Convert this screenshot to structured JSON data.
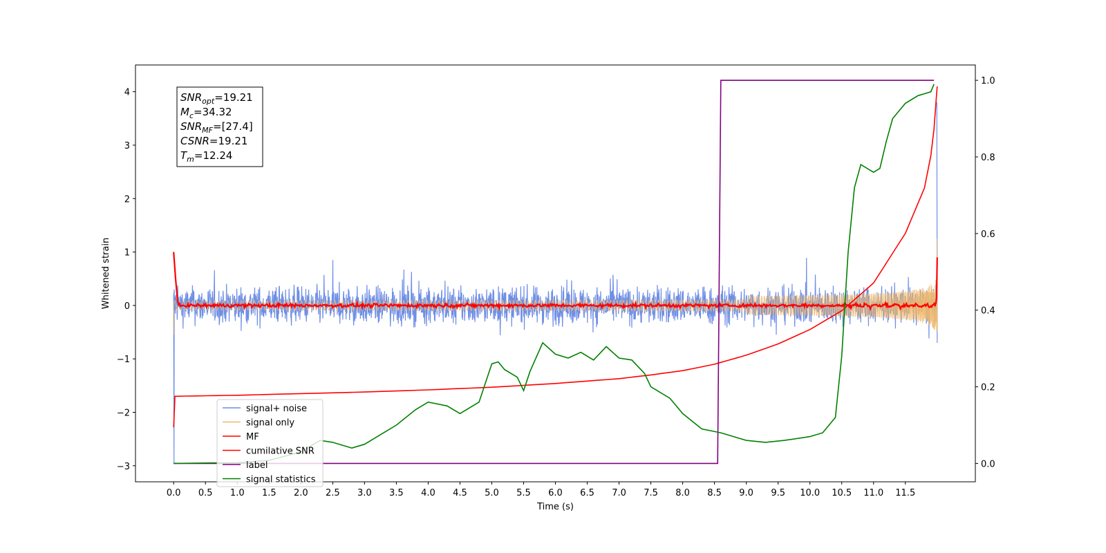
{
  "chart_data": {
    "type": "line",
    "xlabel": "Time (s)",
    "ylabel_left": "Whitened strain",
    "xlim": [
      -0.6,
      12.6
    ],
    "ylim_left": [
      -3.3,
      4.5
    ],
    "ylim_right": [
      -0.048,
      1.04
    ],
    "x_ticks": [
      "0.0",
      "0.5",
      "1.0",
      "1.5",
      "2.0",
      "2.5",
      "3.0",
      "3.5",
      "4.0",
      "4.5",
      "5.0",
      "5.5",
      "6.0",
      "6.5",
      "7.0",
      "7.5",
      "8.0",
      "8.5",
      "9.0",
      "9.5",
      "10.0",
      "10.5",
      "11.0",
      "11.5"
    ],
    "y_left_ticks": [
      "-3",
      "-2",
      "-1",
      "0",
      "1",
      "2",
      "3",
      "4"
    ],
    "y_right_ticks": [
      "0.0",
      "0.2",
      "0.4",
      "0.6",
      "0.8",
      "1.0"
    ],
    "legend_position": "lower-left",
    "grid": false,
    "info_box": [
      {
        "sym": "SNR",
        "sub": "opt",
        "value": "=19.21"
      },
      {
        "sym": "M",
        "sub": "c",
        "value": "=34.32"
      },
      {
        "sym": "SNR",
        "sub": "MF",
        "value": "=[27.4]"
      },
      {
        "sym": "CSNR",
        "sub": "",
        "value": "=19.21"
      },
      {
        "sym": "T",
        "sub": "m",
        "value": "=12.24"
      }
    ],
    "series": [
      {
        "name": "signal+ noise",
        "color": "#6f8ee6",
        "axis": "left",
        "noise_amplitude": 0.45,
        "t_start": 0.0,
        "t_end": 12.0,
        "end_spike": 3.8
      },
      {
        "name": "signal only",
        "color": "#f0b86a",
        "axis": "left",
        "chirp_end_amplitude": 0.55,
        "t_start": 0.0,
        "t_end": 12.0
      },
      {
        "name": "MF",
        "color": "#ff0000",
        "axis": "left",
        "start_value": 1.0,
        "baseline": 0.0,
        "end_value": 0.9
      },
      {
        "name": "cumilative SNR",
        "color": "#ff0000",
        "axis": "left",
        "x": [
          0.0,
          0.01,
          0.02,
          1.0,
          2.0,
          3.0,
          4.0,
          5.0,
          6.0,
          7.0,
          7.5,
          8.0,
          8.5,
          9.0,
          9.5,
          10.0,
          10.5,
          11.0,
          11.5,
          11.8,
          11.9,
          11.95,
          12.0
        ],
        "y": [
          -2.28,
          -2.0,
          -1.7,
          -1.68,
          -1.65,
          -1.62,
          -1.58,
          -1.53,
          -1.46,
          -1.37,
          -1.3,
          -1.22,
          -1.1,
          -0.93,
          -0.72,
          -0.45,
          -0.1,
          0.42,
          1.35,
          2.2,
          2.8,
          3.3,
          4.1
        ]
      },
      {
        "name": "label",
        "color": "#800080",
        "axis": "right",
        "x": [
          0.0,
          8.55,
          8.6,
          11.95
        ],
        "y": [
          0.0,
          0.0,
          1.0,
          1.0
        ]
      },
      {
        "name": "signal statistics",
        "color": "#008000",
        "axis": "right",
        "x": [
          0.0,
          0.5,
          1.0,
          1.5,
          2.0,
          2.3,
          2.5,
          2.8,
          3.0,
          3.3,
          3.5,
          3.8,
          4.0,
          4.3,
          4.5,
          4.8,
          5.0,
          5.1,
          5.2,
          5.4,
          5.5,
          5.6,
          5.8,
          5.9,
          6.0,
          6.2,
          6.4,
          6.6,
          6.8,
          7.0,
          7.2,
          7.4,
          7.5,
          7.8,
          8.0,
          8.3,
          8.6,
          9.0,
          9.3,
          9.6,
          10.0,
          10.2,
          10.4,
          10.5,
          10.6,
          10.7,
          10.8,
          11.0,
          11.1,
          11.2,
          11.3,
          11.5,
          11.7,
          11.8,
          11.9,
          11.95
        ],
        "y": [
          0.0,
          0.001,
          0.002,
          0.008,
          0.03,
          0.06,
          0.055,
          0.04,
          0.05,
          0.08,
          0.1,
          0.14,
          0.16,
          0.15,
          0.13,
          0.16,
          0.26,
          0.265,
          0.245,
          0.225,
          0.19,
          0.24,
          0.315,
          0.3,
          0.285,
          0.275,
          0.29,
          0.27,
          0.305,
          0.275,
          0.27,
          0.235,
          0.2,
          0.17,
          0.13,
          0.09,
          0.08,
          0.06,
          0.055,
          0.06,
          0.07,
          0.08,
          0.12,
          0.28,
          0.55,
          0.72,
          0.78,
          0.76,
          0.77,
          0.84,
          0.9,
          0.94,
          0.96,
          0.965,
          0.97,
          0.99
        ]
      }
    ]
  }
}
